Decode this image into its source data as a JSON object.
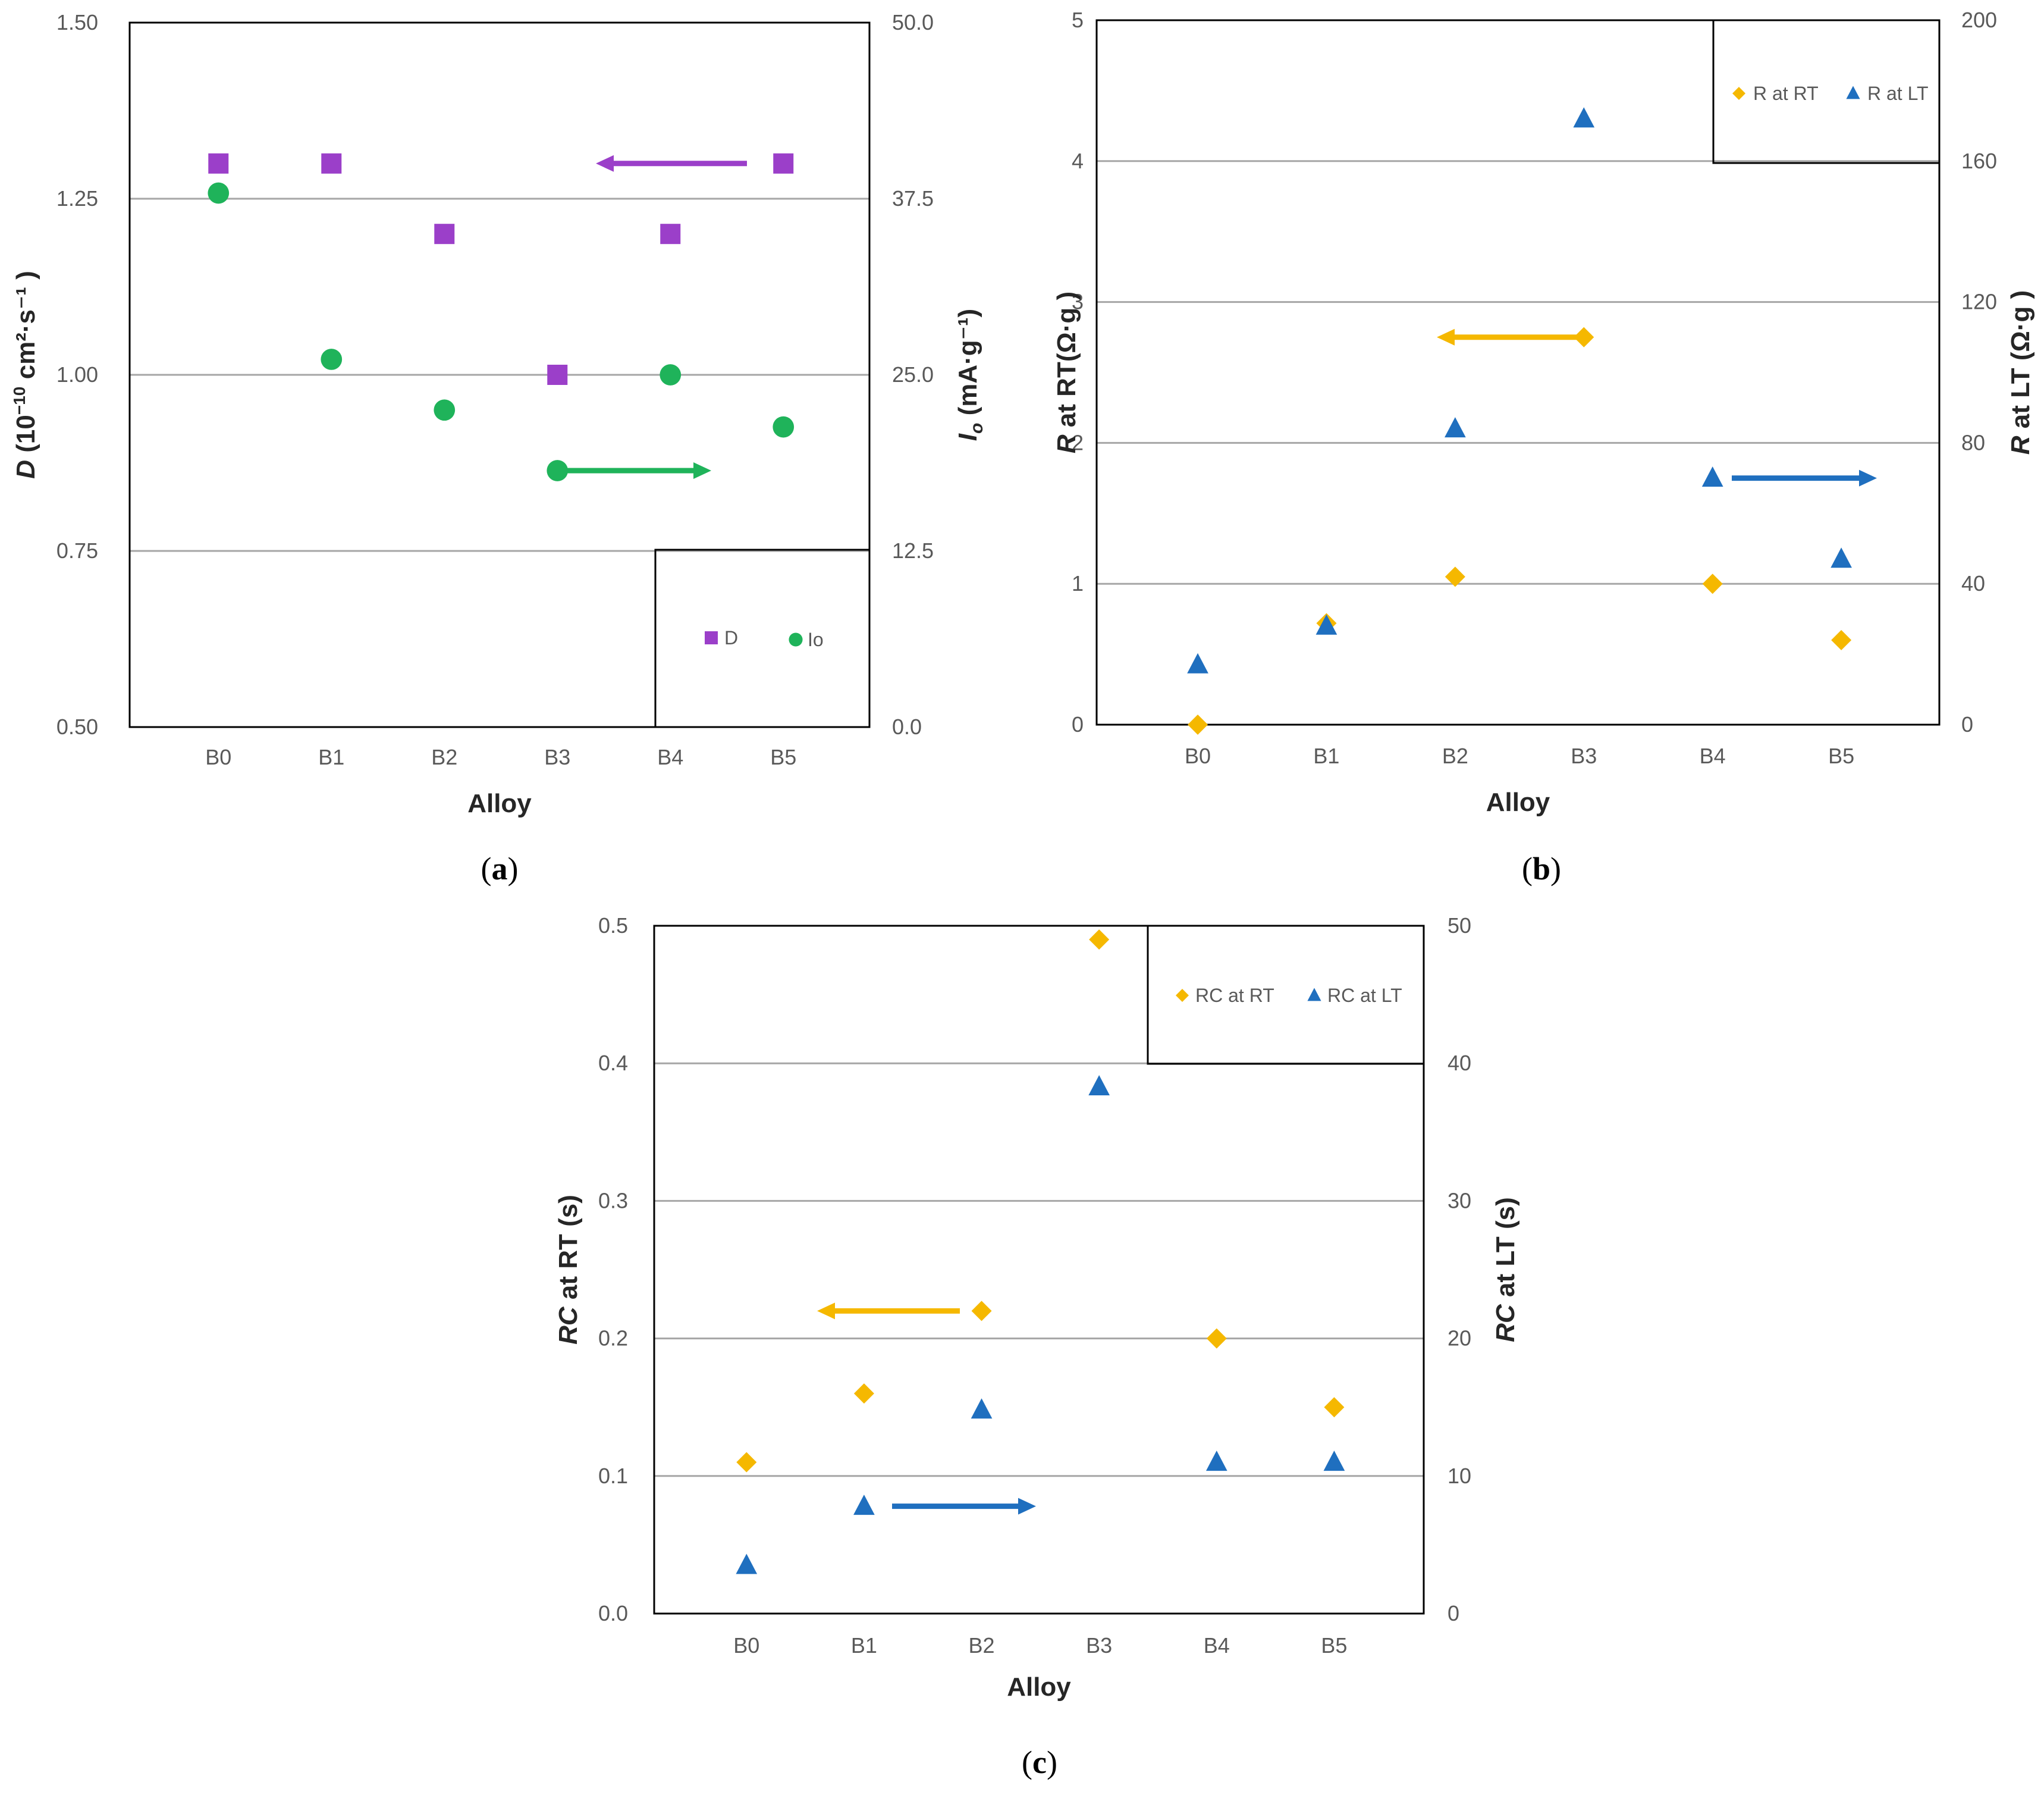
{
  "chart_data": [
    {
      "id": "a",
      "type": "scatter",
      "panel_label": "(a)",
      "xlabel": "Alloy",
      "categories": [
        "B0",
        "B1",
        "B2",
        "B3",
        "B4",
        "B5"
      ],
      "y_left": {
        "label_main": "D",
        "label_rest": " (10",
        "label_exp": "−10",
        "label_tail": " cm²·s⁻¹ )",
        "ylim": [
          0.5,
          1.5
        ],
        "ticks": [
          "0.50",
          "0.75",
          "1.00",
          "1.25",
          "1.50"
        ]
      },
      "y_right": {
        "label_main": "I",
        "label_sub": "o",
        "label_rest": " (mA·g⁻¹)",
        "ylim": [
          0,
          50
        ],
        "ticks": [
          "0.0",
          "12.5",
          "25.0",
          "37.5",
          "50.0"
        ]
      },
      "gridlines": [
        0.75,
        1.0,
        1.25
      ],
      "series": [
        {
          "name": "D",
          "axis": "left",
          "marker": "square",
          "color": "#9b3fc9",
          "values": [
            1.3,
            1.3,
            1.2,
            1.0,
            1.2,
            1.3
          ]
        },
        {
          "name": "Io",
          "axis": "right",
          "marker": "circle",
          "color": "#1fb35a",
          "values": [
            37.9,
            26.1,
            22.5,
            18.2,
            25.0,
            21.3
          ]
        }
      ],
      "legend": {
        "position": "bottom-right",
        "entries": [
          "D",
          "Io"
        ]
      },
      "arrows": [
        {
          "series": "D",
          "direction": "left",
          "color": "#9b3fc9"
        },
        {
          "series": "Io",
          "direction": "right",
          "color": "#1fb35a"
        }
      ]
    },
    {
      "id": "b",
      "type": "scatter",
      "panel_label": "(b)",
      "xlabel": "Alloy",
      "categories": [
        "B0",
        "B1",
        "B2",
        "B3",
        "B4",
        "B5"
      ],
      "y_left": {
        "label_main": "R",
        "label_rest": " at RT(Ω·g )",
        "ylim": [
          0,
          5
        ],
        "ticks": [
          "0",
          "1",
          "2",
          "3",
          "4",
          "5"
        ]
      },
      "y_right": {
        "label_main": "R",
        "label_rest": " at LT (Ω·g )",
        "ylim": [
          0,
          200
        ],
        "ticks": [
          "0",
          "40",
          "80",
          "120",
          "160",
          "200"
        ]
      },
      "gridlines": [
        1,
        2,
        3,
        4
      ],
      "series": [
        {
          "name": "R at RT",
          "axis": "left",
          "marker": "diamond",
          "color": "#f5b800",
          "values": [
            0.0,
            0.72,
            1.05,
            2.75,
            1.0,
            0.6
          ]
        },
        {
          "name": "R at LT",
          "axis": "right",
          "marker": "triangle",
          "color": "#1f6fbf",
          "values": [
            17,
            28,
            84,
            172,
            70,
            47
          ]
        }
      ],
      "legend": {
        "position": "top-right",
        "entries": [
          "R at RT",
          "R at LT"
        ]
      },
      "arrows": [
        {
          "series": "R at RT",
          "direction": "left",
          "color": "#f5b800"
        },
        {
          "series": "R at LT",
          "direction": "right",
          "color": "#1f6fbf"
        }
      ]
    },
    {
      "id": "c",
      "type": "scatter",
      "panel_label": "(c)",
      "xlabel": "Alloy",
      "categories": [
        "B0",
        "B1",
        "B2",
        "B3",
        "B4",
        "B5"
      ],
      "y_left": {
        "label_main": "RC",
        "label_rest": " at RT (s)",
        "ylim": [
          0,
          0.5
        ],
        "ticks": [
          "0.0",
          "0.1",
          "0.2",
          "0.3",
          "0.4",
          "0.5"
        ]
      },
      "y_right": {
        "label_main": "RC",
        "label_rest": "  at LT (s)",
        "ylim": [
          0,
          50
        ],
        "ticks": [
          "0",
          "10",
          "20",
          "30",
          "40",
          "50"
        ]
      },
      "gridlines": [
        0.1,
        0.2,
        0.3,
        0.4
      ],
      "series": [
        {
          "name": "RC at RT",
          "axis": "left",
          "marker": "diamond",
          "color": "#f5b800",
          "values": [
            0.11,
            0.16,
            0.22,
            0.49,
            0.2,
            0.15
          ]
        },
        {
          "name": "RC at LT",
          "axis": "right",
          "marker": "triangle",
          "color": "#1f6fbf",
          "values": [
            3.5,
            7.8,
            14.8,
            38.3,
            11.0,
            11.0
          ]
        }
      ],
      "legend": {
        "position": "top-right",
        "entries": [
          "RC at RT",
          "RC at LT"
        ]
      },
      "arrows": [
        {
          "series": "RC at RT",
          "direction": "left",
          "color": "#f5b800"
        },
        {
          "series": "RC at LT",
          "direction": "right",
          "color": "#1f6fbf"
        }
      ]
    }
  ]
}
